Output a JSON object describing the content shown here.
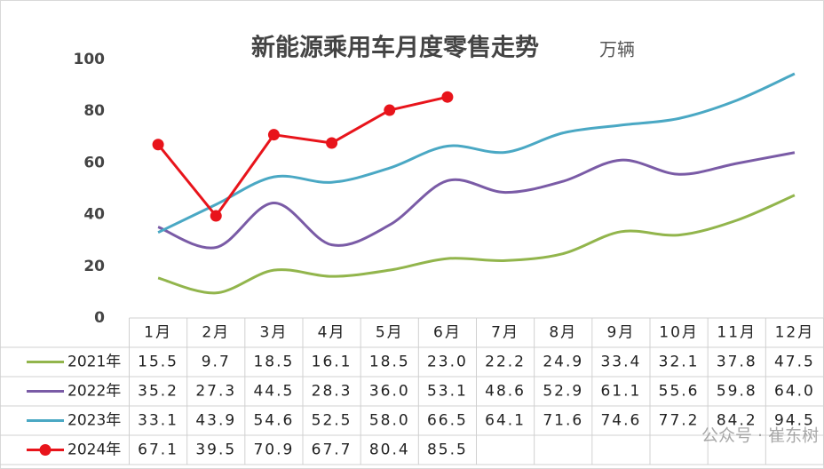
{
  "chart_data": {
    "type": "line",
    "title": "新能源乘用车月度零售走势",
    "subtitle": "万辆",
    "watermark": "公众号 · 崔东树",
    "categories": [
      "1月",
      "2月",
      "3月",
      "4月",
      "5月",
      "6月",
      "7月",
      "8月",
      "9月",
      "10月",
      "11月",
      "12月"
    ],
    "ylim": [
      0,
      100
    ],
    "yticks": [
      0,
      20,
      40,
      60,
      80,
      100
    ],
    "series": [
      {
        "name": "2021年",
        "color": "#92b54c",
        "smooth": true,
        "values": [
          15.5,
          9.7,
          18.5,
          16.1,
          18.5,
          23.0,
          22.2,
          24.9,
          33.4,
          32.1,
          37.8,
          47.5
        ],
        "value_labels": [
          "15.5",
          "9.7",
          "18.5",
          "16.1",
          "18.5",
          "23.0",
          "22.2",
          "24.9",
          "33.4",
          "32.1",
          "37.8",
          "47.5"
        ]
      },
      {
        "name": "2022年",
        "color": "#7a5ba6",
        "smooth": true,
        "values": [
          35.2,
          27.3,
          44.5,
          28.3,
          36.0,
          53.1,
          48.6,
          52.9,
          61.1,
          55.6,
          59.8,
          64.0
        ],
        "value_labels": [
          "35.2",
          "27.3",
          "44.5",
          "28.3",
          "36.0",
          "53.1",
          "48.6",
          "52.9",
          "61.1",
          "55.6",
          "59.8",
          "64.0"
        ]
      },
      {
        "name": "2023年",
        "color": "#4aa8c4",
        "smooth": true,
        "values": [
          33.1,
          43.9,
          54.6,
          52.5,
          58.0,
          66.5,
          64.1,
          71.6,
          74.6,
          77.2,
          84.2,
          94.5
        ],
        "value_labels": [
          "33.1",
          "43.9",
          "54.6",
          "52.5",
          "58.0",
          "66.5",
          "64.1",
          "71.6",
          "74.6",
          "77.2",
          "84.2",
          "94.5"
        ]
      },
      {
        "name": "2024年",
        "color": "#e8141b",
        "smooth": false,
        "markers": true,
        "values": [
          67.1,
          39.5,
          70.9,
          67.7,
          80.4,
          85.5,
          null,
          null,
          null,
          null,
          null,
          null
        ],
        "value_labels": [
          "67.1",
          "39.5",
          "70.9",
          "67.7",
          "80.4",
          "85.5",
          null,
          null,
          null,
          null,
          null,
          null
        ]
      }
    ]
  }
}
